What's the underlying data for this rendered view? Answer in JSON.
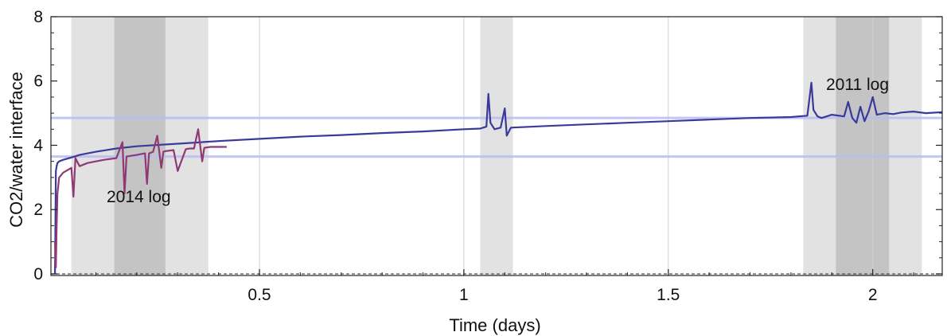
{
  "chart_data": {
    "type": "line",
    "xlabel": "Time (days)",
    "ylabel": "CO2/water interface",
    "xlim": [
      -0.01,
      2.17
    ],
    "ylim": [
      -0.05,
      8
    ],
    "x_ticks": [
      0.5,
      1,
      1.5,
      2
    ],
    "x_tick_labels": [
      "0.5",
      "1",
      "1.5",
      "2"
    ],
    "y_ticks": [
      0,
      2,
      4,
      6,
      8
    ],
    "y_tick_labels": [
      "0",
      "2",
      "4",
      "6",
      "8"
    ],
    "grid": "vertical lines at major x ticks",
    "zero_line": "dashed",
    "shaded_bands": [
      {
        "x0": 0.04,
        "x1": 0.375,
        "shade": "light"
      },
      {
        "x0": 0.145,
        "x1": 0.27,
        "shade": "dark"
      },
      {
        "x0": 1.04,
        "x1": 1.12,
        "shade": "light"
      },
      {
        "x0": 1.83,
        "x1": 2.12,
        "shade": "light"
      },
      {
        "x0": 1.91,
        "x1": 2.04,
        "shade": "dark"
      }
    ],
    "reference_lines": [
      {
        "y": 4.85,
        "color": "#b9bdf2"
      },
      {
        "y": 3.65,
        "color": "#b9bdf2"
      }
    ],
    "annotations": [
      {
        "text": "2014 log",
        "x": 0.14,
        "y": 2.25
      },
      {
        "text": "2011 log",
        "x": 1.88,
        "y": 5.8
      }
    ],
    "series": [
      {
        "color": "#3a3a9a",
        "x": [
          0.0,
          0.002,
          0.004,
          0.006,
          0.01,
          0.02,
          0.04,
          0.06,
          0.1,
          0.15,
          0.2,
          0.3,
          0.4,
          0.5,
          0.6,
          0.7,
          0.8,
          0.9,
          1.0,
          1.04,
          1.055,
          1.06,
          1.065,
          1.075,
          1.09,
          1.1,
          1.105,
          1.115,
          1.2,
          1.3,
          1.4,
          1.5,
          1.6,
          1.7,
          1.8,
          1.84,
          1.85,
          1.855,
          1.865,
          1.875,
          1.9,
          1.93,
          1.94,
          1.95,
          1.96,
          1.97,
          1.98,
          1.99,
          2.0,
          2.01,
          2.03,
          2.05,
          2.07,
          2.1,
          2.13,
          2.17
        ],
        "y": [
          0.0,
          3.2,
          3.35,
          3.45,
          3.5,
          3.55,
          3.62,
          3.7,
          3.8,
          3.9,
          3.97,
          4.05,
          4.13,
          4.2,
          4.27,
          4.32,
          4.38,
          4.43,
          4.5,
          4.52,
          4.58,
          5.6,
          4.7,
          4.5,
          4.55,
          5.15,
          4.3,
          4.55,
          4.6,
          4.65,
          4.7,
          4.75,
          4.8,
          4.85,
          4.88,
          4.92,
          5.95,
          5.1,
          4.9,
          4.85,
          4.95,
          4.9,
          5.35,
          4.85,
          4.7,
          5.2,
          4.75,
          5.05,
          5.5,
          4.95,
          5.0,
          4.97,
          5.02,
          5.05,
          5.0,
          5.03
        ]
      },
      {
        "color": "#8e3a74",
        "x": [
          0.0,
          0.002,
          0.004,
          0.006,
          0.01,
          0.02,
          0.04,
          0.045,
          0.05,
          0.06,
          0.08,
          0.1,
          0.12,
          0.15,
          0.165,
          0.17,
          0.175,
          0.2,
          0.22,
          0.225,
          0.23,
          0.24,
          0.25,
          0.26,
          0.265,
          0.27,
          0.29,
          0.3,
          0.32,
          0.33,
          0.34,
          0.35,
          0.36,
          0.365,
          0.38,
          0.42
        ],
        "y": [
          1.0,
          0.2,
          1.5,
          2.5,
          3.0,
          3.15,
          3.3,
          2.4,
          3.6,
          3.35,
          3.45,
          3.5,
          3.55,
          3.6,
          4.1,
          2.5,
          3.65,
          3.7,
          3.75,
          2.8,
          3.75,
          3.8,
          4.3,
          3.3,
          3.8,
          3.82,
          3.85,
          3.2,
          3.88,
          3.9,
          3.9,
          4.5,
          3.5,
          3.92,
          3.95,
          3.95
        ]
      }
    ]
  }
}
